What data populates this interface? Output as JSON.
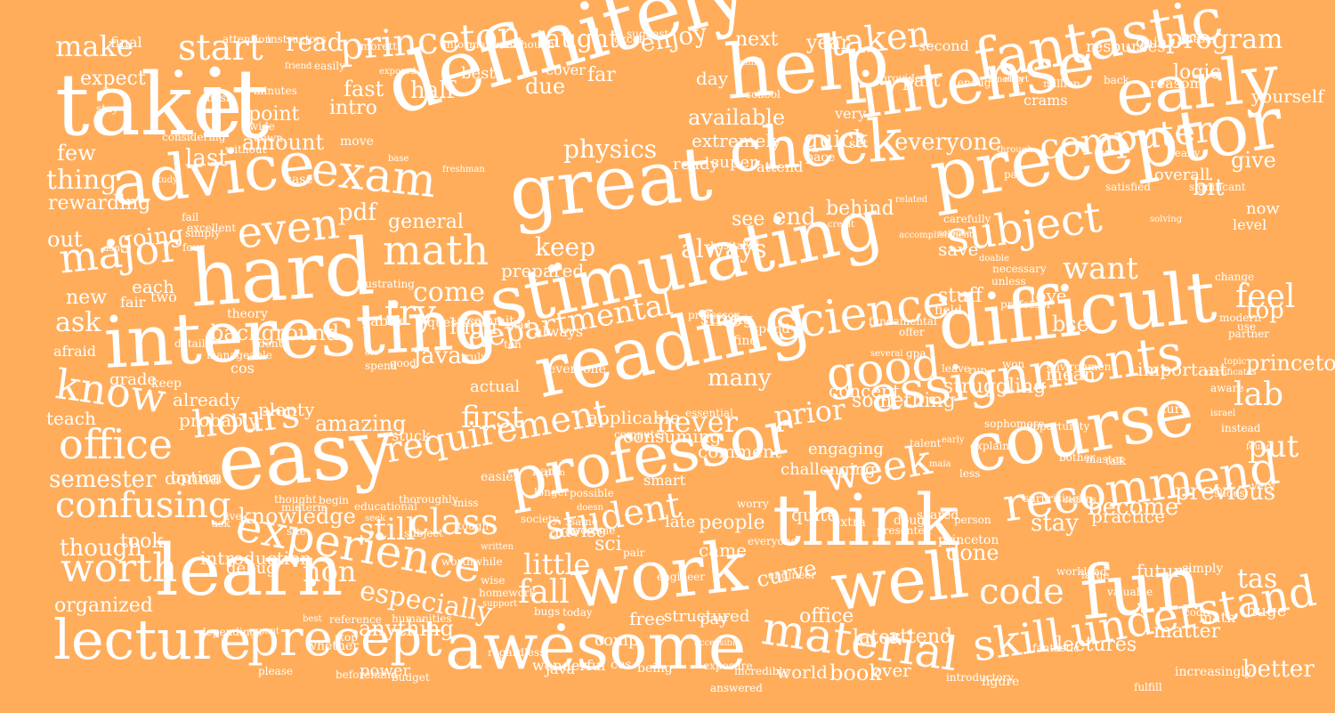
{
  "background_color": "#ffad5b",
  "text_color": "#ffffff",
  "words": [
    "take",
    "it",
    "definitely",
    "help",
    "intense",
    "early",
    "fantastic",
    "princeton",
    "start",
    "make",
    "read",
    "taught",
    "enjoy",
    "program",
    "taken",
    "advice",
    "exam",
    "great",
    "check",
    "preceptor",
    "computer",
    "everyone",
    "hard",
    "stimulating",
    "difficult",
    "interesting",
    "math",
    "major",
    "even",
    "subject",
    "science",
    "good",
    "reading",
    "assignments",
    "know",
    "hours",
    "office",
    "easy",
    "requirement",
    "professor",
    "course",
    "think",
    "week",
    "recommend",
    "experience",
    "class",
    "student",
    "learn",
    "worth",
    "work",
    "well",
    "fun",
    "lecture",
    "precept",
    "awesome",
    "material",
    "understand",
    "skill",
    "code",
    "tas",
    "put",
    "feel",
    "lab",
    "physics",
    "available",
    "amount",
    "extremely",
    "pdf",
    "general",
    "end",
    "behind",
    "want",
    "try",
    "come",
    "departmental",
    "first",
    "never",
    "prior",
    "many",
    "background",
    "ask",
    "confusing",
    "semester",
    "though",
    "took",
    "still",
    "especially",
    "little",
    "fall",
    "non",
    "people",
    "done",
    "stay",
    "become",
    "previous",
    "better",
    "book",
    "world",
    "over",
    "lectures",
    "matter",
    "anything",
    "organized",
    "knowledge",
    "introduction",
    "debug",
    "advise",
    "sci",
    "curve",
    "office",
    "later",
    "attend",
    "due",
    "half",
    "fast",
    "intro",
    "point",
    "last",
    "few",
    "rewarding",
    "thing",
    "out",
    "going",
    "new",
    "each",
    "afraid",
    "grade",
    "teach",
    "keep",
    "already",
    "probably",
    "amazing",
    "plenty",
    "stuck",
    "applicable",
    "consuming",
    "something",
    "concept",
    "mean",
    "important",
    "struggling",
    "princeton",
    "top",
    "bit",
    "overall",
    "give",
    "now",
    "level",
    "yourself",
    "logic",
    "part",
    "year",
    "day",
    "far",
    "best",
    "cover",
    "next",
    "very",
    "quick",
    "always",
    "see",
    "keep",
    "prepared",
    "stuff",
    "love",
    "save",
    "bse",
    "donna",
    "java",
    "actual",
    "high",
    "fine",
    "challenging",
    "engaging",
    "quite",
    "late",
    "comment",
    "smart",
    "future",
    "practice",
    "huge",
    "math",
    "hard",
    "option",
    "power",
    "wonderful",
    "java",
    "cos",
    "being",
    "comp",
    "free",
    "structured",
    "pay",
    "came",
    "strong",
    "find",
    "spend",
    "move",
    "case",
    "ready",
    "super",
    "attend",
    "pace",
    "set",
    "crams",
    "always",
    "everyone",
    "cos",
    "gabai",
    "life",
    "questions",
    "commit",
    "two",
    "fair",
    "down",
    "wide",
    "without",
    "expect",
    "final",
    "attention",
    "instructors",
    "moretti",
    "information",
    "although",
    "suggest",
    "excel",
    "second",
    "resources",
    "gain",
    "tests",
    "million",
    "back",
    "reason",
    "enough",
    "remotely",
    "effort",
    "provide",
    "mind",
    "school",
    "easily",
    "exposed",
    "friend",
    "minutes",
    "finish",
    "stay",
    "considering",
    "study",
    "base",
    "freshman",
    "through",
    "pay",
    "really",
    "significant",
    "satisfied",
    "carefully",
    "science",
    "related",
    "solving",
    "change",
    "unless",
    "doable",
    "accomplishment",
    "credit",
    "tool",
    "hesitate",
    "necessary",
    "professor",
    "field",
    "offer",
    "gpa",
    "several",
    "fundamental",
    "modern",
    "partner",
    "use",
    "topic",
    "certificates",
    "aware",
    "turn",
    "israel",
    "instead",
    "sophomore",
    "opportunity",
    "leave",
    "run",
    "won",
    "environment",
    "found",
    "bother",
    "master",
    "talk",
    "explain",
    "early",
    "talent",
    "maia",
    "less",
    "surprisingly",
    "serious",
    "very",
    "slides",
    "person",
    "princeton",
    "scared",
    "doug",
    "extra",
    "presented",
    "essential",
    "computer",
    "longer",
    "possible",
    "plan",
    "easier",
    "miss",
    "educational",
    "seek",
    "thoroughly",
    "begin",
    "thought",
    "midterm",
    "live",
    "ask",
    "site",
    "subject",
    "worthwhile",
    "wise",
    "homework",
    "support",
    "humanities",
    "reference",
    "best",
    "stop",
    "depending",
    "spent",
    "whether",
    "please",
    "beforehand",
    "budget",
    "regardless",
    "accessible",
    "exposure",
    "answered",
    "incredibly",
    "introductory",
    "figure",
    "fulfill",
    "increasingly",
    "fantastic",
    "valuable",
    "large",
    "workload",
    "simply",
    "code",
    "engineer",
    "everyone",
    "worry",
    "today",
    "bugs",
    "pair",
    "written",
    "awesome",
    "same",
    "doesn",
    "tough",
    "society",
    "engineer",
    "professor",
    "glad",
    "ton",
    "truly",
    "spend",
    "etc",
    "good",
    "frustrating",
    "theory",
    "manageable",
    "detail",
    "dont",
    "four",
    "simply",
    "dont",
    "excellent",
    "fail"
  ]
}
